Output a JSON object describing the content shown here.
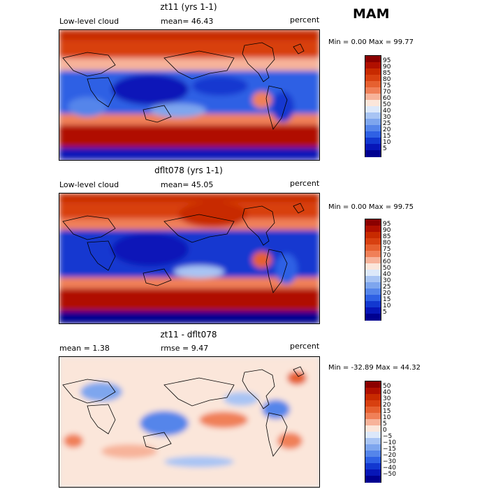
{
  "season": "MAM",
  "panels": [
    {
      "title": "zt11 (yrs 1-1)",
      "left_label": "Low-level cloud",
      "stat1": "mean=  46.43",
      "stat2": "",
      "units": "percent",
      "minmax": "Min =    0.00 Max =   99.77",
      "levels": [
        "95",
        "90",
        "85",
        "80",
        "75",
        "70",
        "60",
        "50",
        "40",
        "30",
        "25",
        "20",
        "15",
        "10",
        "5"
      ],
      "palette": [
        "#8b0000",
        "#b00f00",
        "#c82a00",
        "#d84010",
        "#e66030",
        "#f08058",
        "#f7b39a",
        "#fbe6da",
        "#dce8fa",
        "#a8c4f4",
        "#7ea6ee",
        "#5585ea",
        "#2f61e4",
        "#1238d0",
        "#0716b8",
        "#000090"
      ]
    },
    {
      "title": "dflt078 (yrs 1-1)",
      "left_label": "Low-level cloud",
      "stat1": "mean=  45.05",
      "stat2": "",
      "units": "percent",
      "minmax": "Min =    0.00 Max =   99.75",
      "levels": [
        "95",
        "90",
        "85",
        "80",
        "75",
        "70",
        "60",
        "50",
        "40",
        "30",
        "25",
        "20",
        "15",
        "10",
        "5"
      ],
      "palette": [
        "#8b0000",
        "#b00f00",
        "#c82a00",
        "#d84010",
        "#e66030",
        "#f08058",
        "#f7b39a",
        "#fbe6da",
        "#dce8fa",
        "#a8c4f4",
        "#7ea6ee",
        "#5585ea",
        "#2f61e4",
        "#1238d0",
        "#0716b8",
        "#000090"
      ]
    },
    {
      "title": "zt11 - dflt078",
      "left_label": "mean =    1.38",
      "stat1": "",
      "stat2": "rmse =    9.47",
      "units": "percent",
      "minmax": "Min = -32.89 Max =   44.32",
      "levels": [
        "50",
        "40",
        "30",
        "20",
        "15",
        "10",
        "5",
        "0",
        "−5",
        "−10",
        "−15",
        "−20",
        "−30",
        "−40",
        "−50"
      ],
      "palette": [
        "#8b0000",
        "#b00f00",
        "#c82a00",
        "#d84010",
        "#e66030",
        "#f08058",
        "#f7b39a",
        "#fbe6da",
        "#dce8fa",
        "#a8c4f4",
        "#7ea6ee",
        "#5585ea",
        "#2f61e4",
        "#1238d0",
        "#0716b8",
        "#000090"
      ]
    }
  ]
}
